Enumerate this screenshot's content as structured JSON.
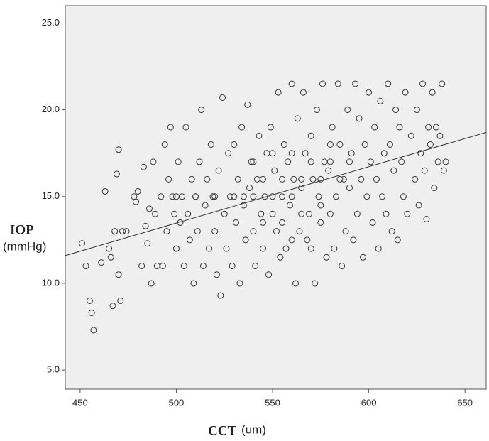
{
  "chart_data": {
    "type": "scatter",
    "x_label": "CCT",
    "x_label_unit": "(um)",
    "y_label": "IOP",
    "y_label_unit": "(mmHg)",
    "xlim": [
      442.3,
      661
    ],
    "ylim": [
      3.9,
      26
    ],
    "xticks": [
      450,
      500,
      550,
      600,
      650
    ],
    "yticks": [
      {
        "value": 5,
        "label": "5.0"
      },
      {
        "value": 10,
        "label": "10.0"
      },
      {
        "value": 15,
        "label": "15.0"
      },
      {
        "value": 20,
        "label": "20.0"
      },
      {
        "value": 25,
        "label": "25.0"
      }
    ],
    "color": "#333333",
    "trend_line": {
      "x": [
        442.3,
        661
      ],
      "y": [
        11.6,
        18.7
      ]
    },
    "x": [
      451,
      453,
      455,
      456,
      457,
      461,
      463,
      465,
      466,
      467,
      468,
      469,
      470,
      470,
      471,
      472,
      474,
      478,
      479,
      480,
      482,
      483,
      484,
      485,
      486,
      487,
      488,
      489,
      490,
      492,
      493,
      494,
      495,
      496,
      497,
      498,
      499,
      500,
      501,
      502,
      503,
      504,
      505,
      506,
      507,
      508,
      509,
      510,
      511,
      512,
      513,
      514,
      515,
      516,
      517,
      518,
      519,
      520,
      521,
      522,
      523,
      524,
      525,
      526,
      527,
      528,
      529,
      530,
      531,
      532,
      533,
      534,
      535,
      536,
      537,
      538,
      539,
      540,
      541,
      542,
      543,
      544,
      545,
      546,
      547,
      548,
      549,
      550,
      551,
      552,
      553,
      554,
      555,
      556,
      557,
      558,
      559,
      560,
      561,
      562,
      563,
      564,
      565,
      566,
      567,
      568,
      569,
      570,
      571,
      572,
      573,
      574,
      575,
      576,
      577,
      578,
      579,
      580,
      581,
      582,
      583,
      584,
      585,
      586,
      587,
      588,
      589,
      590,
      591,
      592,
      593,
      594,
      595,
      596,
      597,
      598,
      599,
      600,
      601,
      602,
      603,
      604,
      605,
      606,
      607,
      608,
      609,
      610,
      611,
      612,
      613,
      614,
      615,
      616,
      617,
      618,
      619,
      620,
      622,
      624,
      625,
      626,
      627,
      628,
      629,
      630,
      631,
      632,
      633,
      634,
      635,
      636,
      637,
      638,
      639,
      640,
      530,
      535,
      540,
      545,
      550,
      555,
      560,
      565,
      570,
      575,
      580,
      585,
      545,
      555,
      565,
      575,
      560,
      570,
      540,
      550,
      560,
      580,
      590,
      520,
      510,
      500
    ],
    "y": [
      12.3,
      11,
      9,
      8.3,
      7.3,
      11.2,
      15.3,
      12,
      11.5,
      8.7,
      13,
      16.3,
      17.7,
      10.5,
      9,
      13,
      13,
      15,
      14.7,
      15.3,
      11,
      16.7,
      13.3,
      12.3,
      14.3,
      10,
      17,
      14,
      11,
      15,
      11,
      18,
      13,
      16,
      19,
      15,
      14,
      12,
      17,
      13.5,
      15,
      11,
      19,
      14,
      12.5,
      16,
      10,
      15,
      13,
      17,
      20,
      11,
      14.5,
      16,
      12,
      18,
      15,
      13,
      10.5,
      16.5,
      9.3,
      20.7,
      14,
      12,
      17.5,
      15,
      11,
      18,
      13.5,
      16,
      10,
      19,
      14.5,
      12.5,
      20.3,
      15.5,
      17,
      13,
      11,
      16,
      18.5,
      14,
      12,
      15,
      17.5,
      10.5,
      19,
      14,
      16.5,
      13,
      21,
      11.5,
      15,
      18,
      12,
      17,
      14.5,
      21.5,
      16,
      10,
      19.5,
      13,
      15.5,
      21,
      17.5,
      12.5,
      14,
      18.5,
      16,
      10,
      20,
      15,
      13.5,
      21.5,
      17,
      11.5,
      16.5,
      14,
      19,
      12,
      15,
      21.5,
      18,
      11,
      16,
      13,
      20,
      15.5,
      17.5,
      12.5,
      21.5,
      14,
      19.5,
      16,
      11.5,
      18,
      15,
      21,
      17,
      13.5,
      19,
      16,
      12,
      20.5,
      15,
      17.5,
      14,
      21.5,
      18,
      13,
      16.5,
      20,
      12.5,
      19,
      17,
      15,
      21,
      14,
      18.5,
      16,
      20,
      14.5,
      17.5,
      21.5,
      16.5,
      13.7,
      19,
      18,
      21,
      15.5,
      19,
      17,
      18.5,
      21.5,
      16.5,
      17,
      15,
      15,
      15,
      16,
      15,
      16,
      15,
      16,
      17,
      16,
      17,
      16,
      13.5,
      13.5,
      14,
      14.5,
      12.5,
      12,
      17,
      17.5,
      17.5,
      18,
      17,
      15,
      15,
      15
    ]
  }
}
